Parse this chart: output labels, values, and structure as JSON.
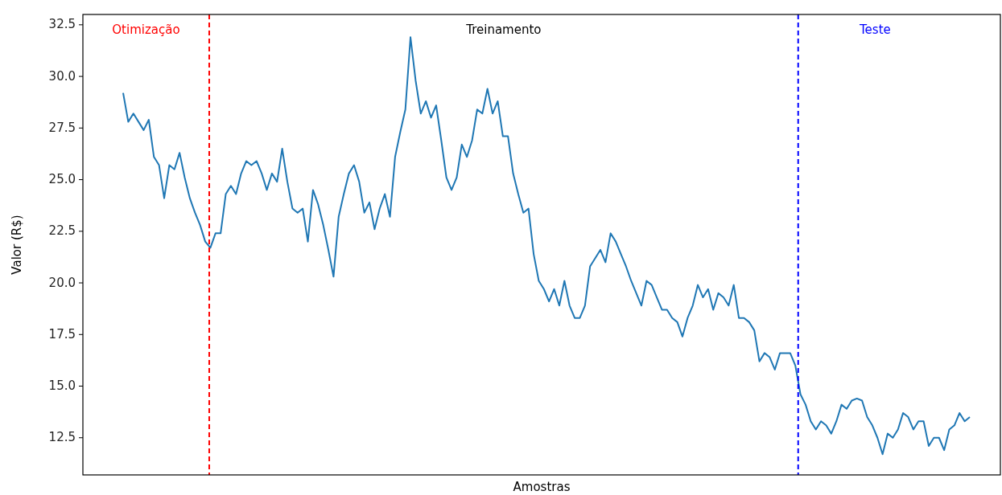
{
  "chart_data": {
    "type": "line",
    "xlabel": "Amostras",
    "ylabel": "Valor (R$)",
    "categories": [
      null,
      null,
      null,
      null,
      null,
      null,
      null,
      null,
      null,
      null,
      null,
      null,
      null,
      null,
      null,
      null,
      null,
      null,
      null,
      null,
      null,
      null,
      null,
      null,
      null,
      null,
      null,
      null,
      null,
      null,
      null,
      null,
      null,
      null,
      null,
      null,
      null,
      null,
      null,
      null,
      null,
      null,
      null,
      null,
      null,
      null,
      null,
      null,
      null,
      null,
      null,
      null,
      null,
      null,
      null,
      null,
      null,
      null,
      null,
      null,
      null,
      null,
      null,
      null,
      null,
      null,
      null,
      null,
      null,
      null,
      null,
      null,
      null,
      null,
      null,
      null,
      null,
      null,
      null,
      null,
      null,
      null,
      null,
      null,
      null,
      null,
      null,
      null,
      null,
      null,
      null,
      null,
      null,
      null,
      null,
      null,
      null,
      null,
      null,
      null,
      null,
      null,
      null,
      null,
      null,
      null,
      null,
      null,
      null,
      null,
      null,
      null,
      null,
      null,
      null,
      null,
      null,
      null,
      null,
      null,
      null,
      null,
      null,
      null,
      null,
      null,
      null,
      null,
      null,
      null,
      null,
      null,
      null,
      null,
      null,
      null,
      null,
      null,
      null,
      null,
      null,
      null,
      null,
      null,
      null,
      null,
      null,
      null,
      null,
      null,
      null,
      null,
      null,
      null,
      null,
      null,
      null,
      null,
      null,
      null,
      null,
      null,
      null,
      null,
      null,
      null
    ],
    "series": [
      {
        "color": "#1f77b4",
        "values": [
          29.2,
          27.8,
          28.2,
          27.8,
          27.4,
          27.9,
          26.1,
          25.7,
          24.1,
          25.7,
          25.5,
          26.3,
          25.1,
          24.1,
          23.4,
          22.8,
          22.0,
          21.7,
          22.4,
          22.4,
          24.3,
          24.7,
          24.3,
          25.3,
          25.9,
          25.7,
          25.9,
          25.3,
          24.5,
          25.3,
          24.9,
          26.5,
          24.9,
          23.6,
          23.4,
          23.6,
          22.0,
          24.5,
          23.8,
          22.8,
          21.6,
          20.3,
          23.2,
          24.3,
          25.3,
          25.7,
          24.9,
          23.4,
          23.9,
          22.6,
          23.6,
          24.3,
          23.2,
          26.1,
          27.3,
          28.4,
          31.9,
          29.8,
          28.2,
          28.8,
          28.0,
          28.6,
          26.9,
          25.1,
          24.5,
          25.1,
          26.7,
          26.1,
          26.9,
          28.4,
          28.2,
          29.4,
          28.2,
          28.8,
          27.1,
          27.1,
          25.3,
          24.3,
          23.4,
          23.6,
          21.4,
          20.1,
          19.7,
          19.1,
          19.7,
          18.9,
          20.1,
          18.9,
          18.3,
          18.3,
          18.9,
          20.8,
          21.2,
          21.6,
          21.0,
          22.4,
          22.0,
          21.4,
          20.8,
          20.1,
          19.5,
          18.9,
          20.1,
          19.9,
          19.3,
          18.7,
          18.7,
          18.3,
          18.1,
          17.4,
          18.3,
          18.9,
          19.9,
          19.3,
          19.7,
          18.7,
          19.5,
          19.3,
          18.9,
          19.9,
          18.3,
          18.3,
          18.1,
          17.7,
          16.2,
          16.6,
          16.4,
          15.8,
          16.6,
          16.6,
          16.6,
          16.0,
          14.6,
          14.1,
          13.3,
          12.9,
          13.3,
          13.1,
          12.7,
          13.3,
          14.1,
          13.9,
          14.3,
          14.4,
          14.3,
          13.5,
          13.1,
          12.5,
          11.7,
          12.7,
          12.5,
          12.9,
          13.7,
          13.5,
          12.9,
          13.3,
          13.3,
          12.1,
          12.5,
          12.5,
          11.9,
          12.9,
          13.1,
          13.7,
          13.3,
          13.5
        ]
      }
    ],
    "ylim": [
      10.7,
      33
    ],
    "yticks": [
      12.5,
      {
        "value": 15,
        "label": "15.0"
      },
      17.5,
      {
        "value": 20,
        "label": "20.0"
      },
      22.5,
      {
        "value": 25,
        "label": "25.0"
      },
      27.5,
      {
        "value": 30,
        "label": "30.0"
      },
      32.5
    ],
    "tick_labels": "y",
    "grid": false,
    "annotations": [
      "Otimização",
      "Treinamento",
      "Teste"
    ]
  }
}
